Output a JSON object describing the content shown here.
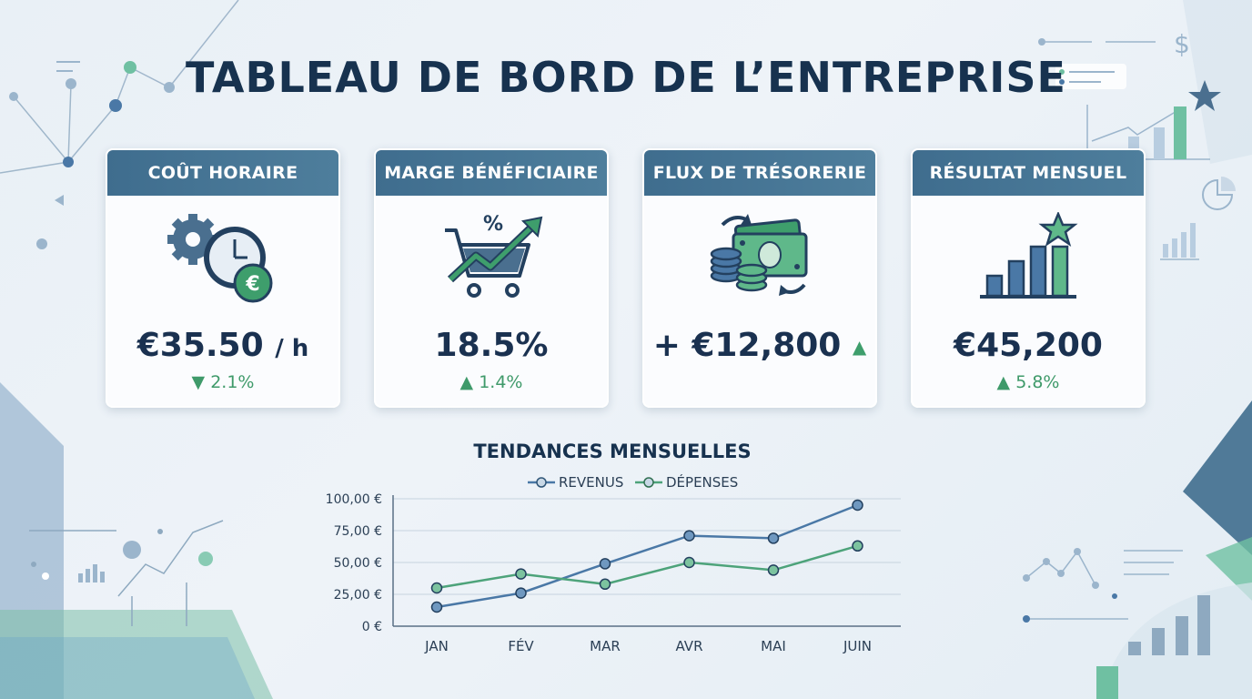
{
  "page": {
    "title": "TABLEAU DE BORD DE L’ENTREPRISE",
    "colors": {
      "navy": "#17324f",
      "header_blue": "#4a7898",
      "green": "#3e9e6c",
      "blue_line": "#4a78a6",
      "green_line": "#4da37a"
    }
  },
  "cards": [
    {
      "title": "COÛT HORAIRE",
      "value": "€35.50",
      "unit": "/ h",
      "change_arrow": "▼",
      "change": "2.1%",
      "icon": "clock-gear-euro-icon"
    },
    {
      "title": "MARGE BÉNÉFICIAIRE",
      "value": "18.5%",
      "change_arrow": "▲",
      "change": "1.4%",
      "icon": "cart-percent-growth-icon"
    },
    {
      "title": "FLUX DE TRÉSORERIE",
      "value": "+ €12,800",
      "trend_arrow": "▲",
      "icon": "cash-coins-icon"
    },
    {
      "title": "RÉSULTAT MENSUEL",
      "value": "€45,200",
      "change_arrow": "▲",
      "change": "5.8%",
      "icon": "bar-chart-star-icon"
    }
  ],
  "chart_data": {
    "type": "line",
    "title": "TENDANCES MENSUELLES",
    "categories": [
      "JAN",
      "FÉV",
      "MAR",
      "AVR",
      "MAI",
      "JUIN"
    ],
    "series": [
      {
        "name": "REVENUS",
        "color": "#4a78a6",
        "values": [
          15,
          26,
          49,
          71,
          69,
          95
        ]
      },
      {
        "name": "DÉPENSES",
        "color": "#4da37a",
        "values": [
          30,
          41,
          33,
          50,
          44,
          63
        ]
      }
    ],
    "yticks": [
      "100,00 €",
      "75,00 €",
      "50,00 €",
      "25,00 €",
      "0 €"
    ],
    "ylim": [
      0,
      100
    ],
    "legend_position": "top",
    "grid": true
  }
}
